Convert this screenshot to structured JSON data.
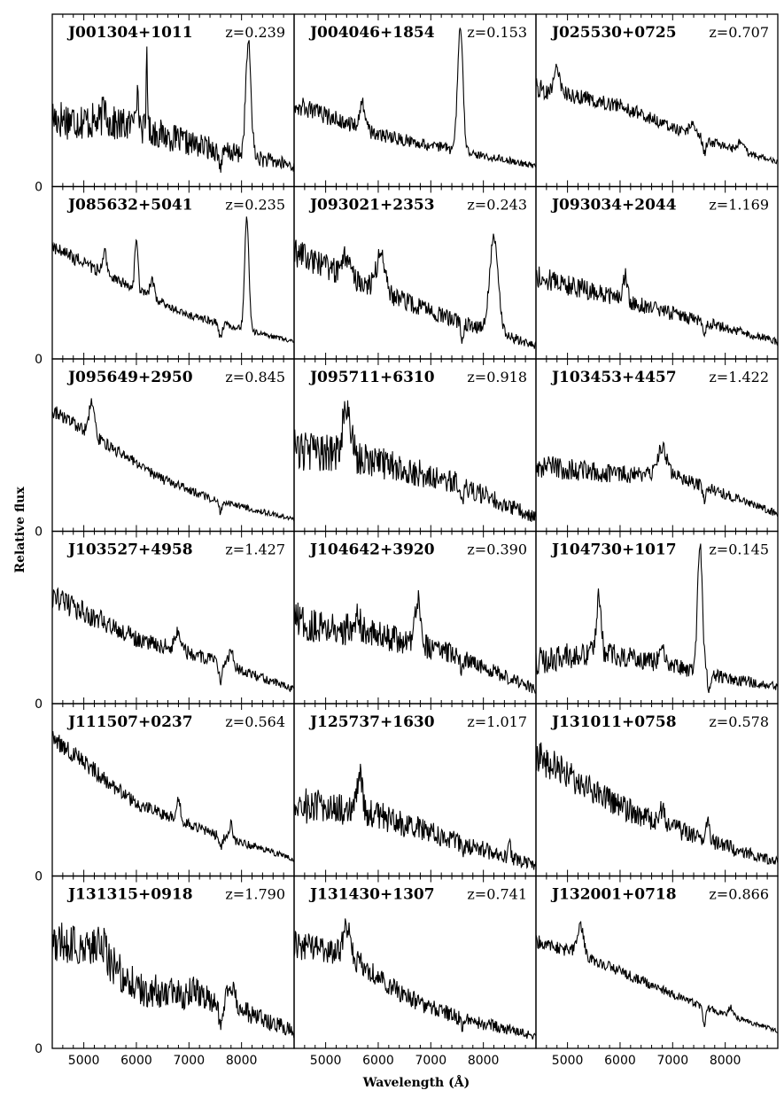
{
  "figure": {
    "xlabel": "Wavelength (Å)",
    "ylabel": "Relative flux"
  },
  "chart_data": {
    "type": "line",
    "xlabel": "Wavelength (Å)",
    "ylabel": "Relative flux",
    "xlim": [
      4400,
      9000
    ],
    "xticks": [
      "5000",
      "6000",
      "7000",
      "8000"
    ],
    "y_zero_label": "0",
    "layout": "6 rows x 3 columns",
    "panels": [
      {
        "name": "J001304+1011",
        "z": "z=0.239",
        "continuum": [
          [
            4400,
            0.4
          ],
          [
            6000,
            0.35
          ],
          [
            7000,
            0.25
          ],
          [
            9000,
            0.12
          ]
        ],
        "noise": 0.09,
        "lines": [
          [
            6000,
            0.18,
            40
          ],
          [
            6200,
            0.5,
            12
          ],
          [
            5400,
            0.1,
            40
          ],
          [
            8130,
            0.65,
            50
          ],
          [
            7600,
            -0.08,
            40
          ]
        ]
      },
      {
        "name": "J004046+1854",
        "z": "z=0.153",
        "continuum": [
          [
            4400,
            0.48
          ],
          [
            6000,
            0.3
          ],
          [
            7000,
            0.24
          ],
          [
            9000,
            0.12
          ]
        ],
        "noise": 0.04,
        "lines": [
          [
            5700,
            0.14,
            60
          ],
          [
            7560,
            0.72,
            50
          ]
        ]
      },
      {
        "name": "J025530+0725",
        "z": "z=0.707",
        "continuum": [
          [
            4400,
            0.57
          ],
          [
            6000,
            0.47
          ],
          [
            7500,
            0.28
          ],
          [
            9000,
            0.14
          ]
        ],
        "noise": 0.04,
        "lines": [
          [
            4800,
            0.12,
            60
          ],
          [
            7400,
            0.06,
            80
          ],
          [
            8300,
            0.06,
            60
          ],
          [
            7600,
            -0.08,
            30
          ]
        ]
      },
      {
        "name": "J085632+5041",
        "z": "z=0.235",
        "continuum": [
          [
            4400,
            0.65
          ],
          [
            6000,
            0.4
          ],
          [
            7000,
            0.25
          ],
          [
            9000,
            0.1
          ]
        ],
        "noise": 0.03,
        "lines": [
          [
            5400,
            0.12,
            40
          ],
          [
            6000,
            0.3,
            30
          ],
          [
            6300,
            0.1,
            40
          ],
          [
            8100,
            0.65,
            40
          ],
          [
            7600,
            -0.08,
            30
          ]
        ]
      },
      {
        "name": "J093021+2353",
        "z": "z=0.243",
        "continuum": [
          [
            4400,
            0.62
          ],
          [
            6000,
            0.4
          ],
          [
            7200,
            0.25
          ],
          [
            9000,
            0.08
          ]
        ],
        "noise": 0.06,
        "lines": [
          [
            5400,
            0.12,
            60
          ],
          [
            6050,
            0.22,
            80
          ],
          [
            8200,
            0.55,
            80
          ],
          [
            7600,
            -0.1,
            30
          ]
        ]
      },
      {
        "name": "J093034+2044",
        "z": "z=1.169",
        "continuum": [
          [
            4400,
            0.48
          ],
          [
            6000,
            0.35
          ],
          [
            7500,
            0.22
          ],
          [
            9000,
            0.1
          ]
        ],
        "noise": 0.05,
        "lines": [
          [
            6100,
            0.14,
            40
          ],
          [
            7600,
            -0.08,
            30
          ]
        ]
      },
      {
        "name": "J095649+2950",
        "z": "z=0.845",
        "continuum": [
          [
            4400,
            0.7
          ],
          [
            5200,
            0.55
          ],
          [
            6500,
            0.3
          ],
          [
            7500,
            0.18
          ],
          [
            9000,
            0.07
          ]
        ],
        "noise": 0.03,
        "lines": [
          [
            5150,
            0.18,
            50
          ],
          [
            7600,
            -0.06,
            30
          ]
        ]
      },
      {
        "name": "J095711+6310",
        "z": "z=0.918",
        "continuum": [
          [
            4400,
            0.48
          ],
          [
            6000,
            0.4
          ],
          [
            7500,
            0.28
          ],
          [
            9000,
            0.08
          ]
        ],
        "noise": 0.09,
        "lines": [
          [
            5400,
            0.28,
            80
          ],
          [
            7600,
            -0.06,
            30
          ]
        ]
      },
      {
        "name": "J103453+4457",
        "z": "z=1.422",
        "continuum": [
          [
            4400,
            0.38
          ],
          [
            6000,
            0.33
          ],
          [
            7000,
            0.33
          ],
          [
            9000,
            0.1
          ]
        ],
        "noise": 0.05,
        "lines": [
          [
            6800,
            0.16,
            80
          ],
          [
            7600,
            -0.08,
            30
          ]
        ]
      },
      {
        "name": "J103527+4958",
        "z": "z=1.427",
        "continuum": [
          [
            4400,
            0.62
          ],
          [
            6000,
            0.38
          ],
          [
            7500,
            0.25
          ],
          [
            9000,
            0.08
          ]
        ],
        "noise": 0.05,
        "lines": [
          [
            6800,
            0.1,
            60
          ],
          [
            7800,
            0.1,
            40
          ],
          [
            7600,
            -0.1,
            30
          ]
        ]
      },
      {
        "name": "J104642+3920",
        "z": "z=0.390",
        "continuum": [
          [
            4400,
            0.48
          ],
          [
            6000,
            0.4
          ],
          [
            7500,
            0.28
          ],
          [
            9000,
            0.08
          ]
        ],
        "noise": 0.08,
        "lines": [
          [
            5600,
            0.08,
            60
          ],
          [
            6750,
            0.26,
            60
          ],
          [
            7600,
            -0.08,
            30
          ]
        ]
      },
      {
        "name": "J104730+1017",
        "z": "z=0.145",
        "continuum": [
          [
            4400,
            0.25
          ],
          [
            5500,
            0.3
          ],
          [
            6500,
            0.25
          ],
          [
            8000,
            0.15
          ],
          [
            9000,
            0.1
          ]
        ],
        "noise": 0.06,
        "lines": [
          [
            5600,
            0.35,
            40
          ],
          [
            6800,
            0.08,
            60
          ],
          [
            7520,
            0.75,
            45
          ],
          [
            7700,
            -0.08,
            30
          ]
        ]
      },
      {
        "name": "J111507+0237",
        "z": "z=0.564",
        "continuum": [
          [
            4400,
            0.8
          ],
          [
            6000,
            0.42
          ],
          [
            7500,
            0.24
          ],
          [
            9000,
            0.1
          ]
        ],
        "noise": 0.04,
        "lines": [
          [
            6800,
            0.12,
            40
          ],
          [
            7800,
            0.1,
            30
          ],
          [
            7600,
            -0.06,
            30
          ]
        ]
      },
      {
        "name": "J125737+1630",
        "z": "z=1.017",
        "continuum": [
          [
            4400,
            0.42
          ],
          [
            6000,
            0.35
          ],
          [
            7500,
            0.2
          ],
          [
            9000,
            0.06
          ]
        ],
        "noise": 0.08,
        "lines": [
          [
            5650,
            0.22,
            50
          ],
          [
            8500,
            0.1,
            20
          ],
          [
            7600,
            -0.06,
            30
          ]
        ]
      },
      {
        "name": "J131011+0758",
        "z": "z=0.578",
        "continuum": [
          [
            4400,
            0.7
          ],
          [
            6000,
            0.4
          ],
          [
            7500,
            0.22
          ],
          [
            9000,
            0.08
          ]
        ],
        "noise": 0.07,
        "lines": [
          [
            6800,
            0.08,
            50
          ],
          [
            7650,
            0.12,
            50
          ],
          [
            7600,
            -0.06,
            30
          ]
        ]
      },
      {
        "name": "J131315+0918",
        "z": "z=1.790",
        "continuum": [
          [
            4400,
            0.62
          ],
          [
            5300,
            0.55
          ],
          [
            6000,
            0.35
          ],
          [
            7500,
            0.28
          ],
          [
            9000,
            0.1
          ]
        ],
        "noise": 0.1,
        "lines": [
          [
            5300,
            0.1,
            80
          ],
          [
            7100,
            0.06,
            60
          ],
          [
            7800,
            0.12,
            70
          ],
          [
            7600,
            -0.14,
            40
          ]
        ]
      },
      {
        "name": "J131430+1307",
        "z": "z=0.741",
        "continuum": [
          [
            4400,
            0.6
          ],
          [
            5400,
            0.55
          ],
          [
            6500,
            0.3
          ],
          [
            7500,
            0.18
          ],
          [
            9000,
            0.07
          ]
        ],
        "noise": 0.06,
        "lines": [
          [
            5400,
            0.16,
            60
          ],
          [
            7600,
            -0.05,
            30
          ]
        ]
      },
      {
        "name": "J132001+0718",
        "z": "z=0.866",
        "continuum": [
          [
            4400,
            0.62
          ],
          [
            5200,
            0.55
          ],
          [
            6500,
            0.38
          ],
          [
            7500,
            0.25
          ],
          [
            9000,
            0.1
          ]
        ],
        "noise": 0.03,
        "lines": [
          [
            5250,
            0.16,
            60
          ],
          [
            7600,
            -0.1,
            25
          ],
          [
            8100,
            0.05,
            40
          ]
        ]
      }
    ]
  }
}
